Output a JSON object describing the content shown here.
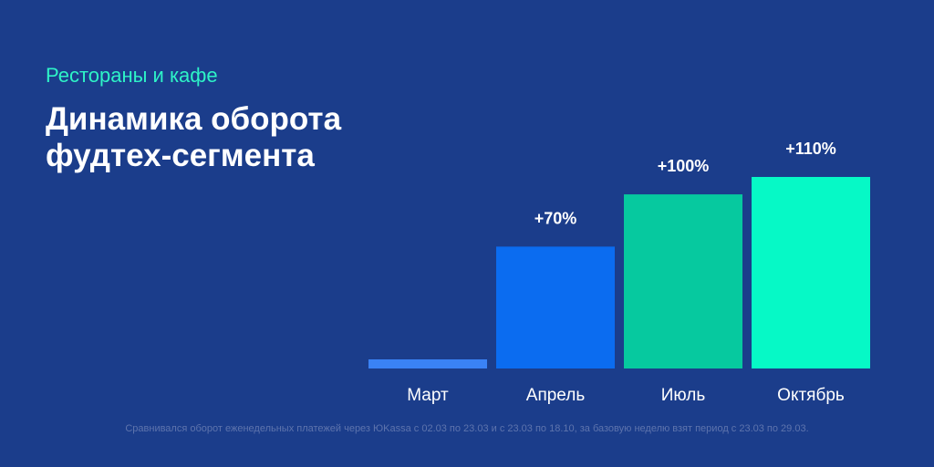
{
  "header": {
    "subtitle": "Рестораны и кафе",
    "title_line1": "Динамика оборота",
    "title_line2": "фудтех-сегмента"
  },
  "footnote": "Сравнивался оборот еженедельных платежей через ЮKassa с 02.03 по 23.03 и с 23.03 по 18.10, за базовую неделю взят период с 23.03 по 29.03.",
  "colors": {
    "background": "#1b3d8b",
    "bar_march": "#3a82f5",
    "bar_april": "#0b6cf0",
    "bar_july": "#06c99f",
    "bar_october": "#06f9c6"
  },
  "chart_data": {
    "type": "bar",
    "categories": [
      "Март",
      "Апрель",
      "Июль",
      "Октябрь"
    ],
    "values": [
      0,
      70,
      100,
      110
    ],
    "data_labels": [
      "",
      "+70%",
      "+100%",
      "+110%"
    ],
    "ylim": [
      0,
      110
    ],
    "grid": false,
    "bar_colors": [
      "#3a82f5",
      "#0b6cf0",
      "#06c99f",
      "#06f9c6"
    ]
  }
}
